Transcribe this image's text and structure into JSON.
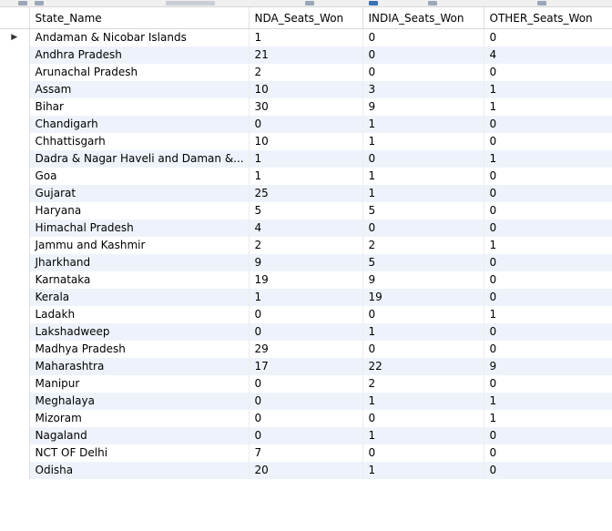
{
  "grid": {
    "columns": [
      "State_Name",
      "NDA_Seats_Won",
      "INDIA_Seats_Won",
      "OTHER_Seats_Won"
    ],
    "current_row_indicator": "▶",
    "rows": [
      [
        "Andaman & Nicobar Islands",
        "1",
        "0",
        "0"
      ],
      [
        "Andhra Pradesh",
        "21",
        "0",
        "4"
      ],
      [
        "Arunachal Pradesh",
        "2",
        "0",
        "0"
      ],
      [
        "Assam",
        "10",
        "3",
        "1"
      ],
      [
        "Bihar",
        "30",
        "9",
        "1"
      ],
      [
        "Chandigarh",
        "0",
        "1",
        "0"
      ],
      [
        "Chhattisgarh",
        "10",
        "1",
        "0"
      ],
      [
        "Dadra & Nagar Haveli and Daman &...",
        "1",
        "0",
        "1"
      ],
      [
        "Goa",
        "1",
        "1",
        "0"
      ],
      [
        "Gujarat",
        "25",
        "1",
        "0"
      ],
      [
        "Haryana",
        "5",
        "5",
        "0"
      ],
      [
        "Himachal Pradesh",
        "4",
        "0",
        "0"
      ],
      [
        "Jammu and Kashmir",
        "2",
        "2",
        "1"
      ],
      [
        "Jharkhand",
        "9",
        "5",
        "0"
      ],
      [
        "Karnataka",
        "19",
        "9",
        "0"
      ],
      [
        "Kerala",
        "1",
        "19",
        "0"
      ],
      [
        "Ladakh",
        "0",
        "0",
        "1"
      ],
      [
        "Lakshadweep",
        "0",
        "1",
        "0"
      ],
      [
        "Madhya Pradesh",
        "29",
        "0",
        "0"
      ],
      [
        "Maharashtra",
        "17",
        "22",
        "9"
      ],
      [
        "Manipur",
        "0",
        "2",
        "0"
      ],
      [
        "Meghalaya",
        "0",
        "1",
        "1"
      ],
      [
        "Mizoram",
        "0",
        "0",
        "1"
      ],
      [
        "Nagaland",
        "0",
        "1",
        "0"
      ],
      [
        "NCT OF Delhi",
        "7",
        "0",
        "0"
      ],
      [
        "Odisha",
        "20",
        "1",
        "0"
      ]
    ]
  },
  "colors": {
    "alt_row": "#eef3fb",
    "grid_line": "#ececec"
  }
}
